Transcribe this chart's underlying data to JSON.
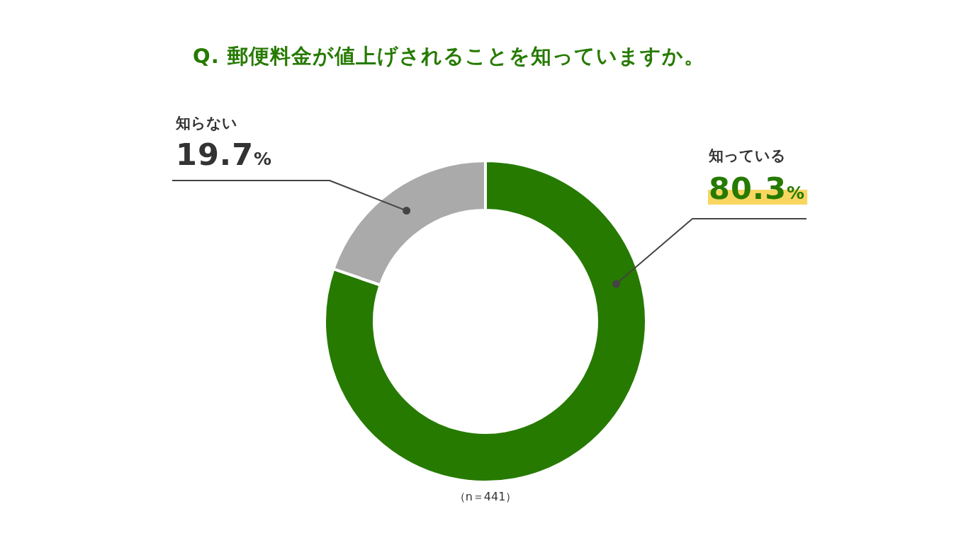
{
  "chart_data": {
    "type": "donut",
    "title": "Q. 郵便料金が値上げされることを知っていますか。",
    "categories": [
      "知っている",
      "知らない"
    ],
    "values": [
      80.3,
      19.7
    ],
    "colors": [
      "#267a00",
      "#aaaaaa"
    ],
    "value_labels": [
      "80.3%",
      "19.7%"
    ],
    "annotations": [
      "（n＝441）"
    ]
  }
}
